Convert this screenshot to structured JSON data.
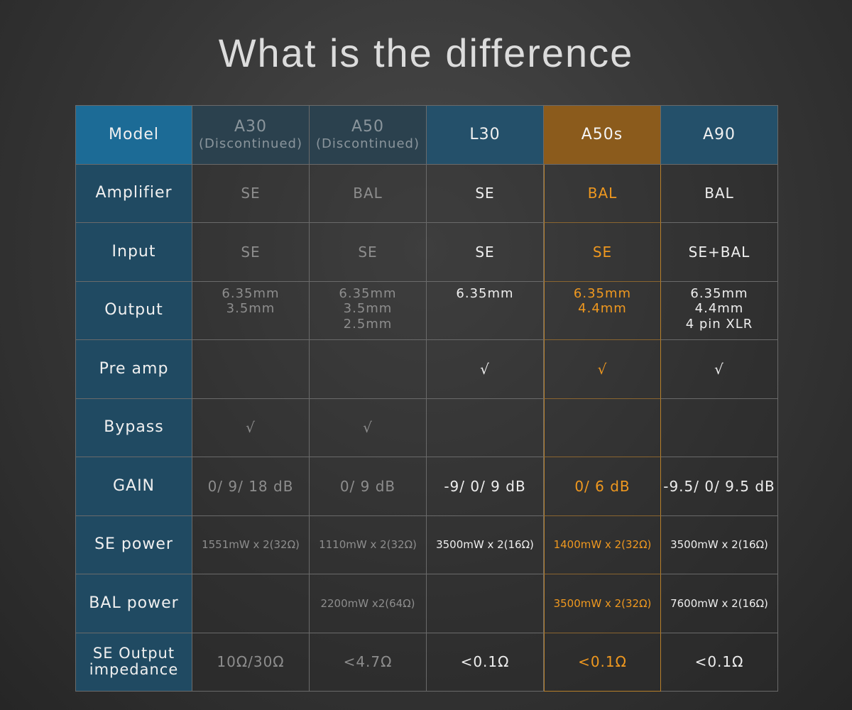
{
  "title": "What is the difference",
  "colors": {
    "label_bg": "#204a62",
    "model_label_bg": "#1c6b96",
    "highlight": "#ef981f",
    "highlight_header_bg": "#8b5b1c",
    "discontinued_text": "#8d8d8d"
  },
  "header_label": "Model",
  "models": [
    {
      "name": "A30",
      "note": "(Discontinued)",
      "status": "discontinued"
    },
    {
      "name": "A50",
      "note": "(Discontinued)",
      "status": "discontinued"
    },
    {
      "name": "L30",
      "note": "",
      "status": "current"
    },
    {
      "name": "A50s",
      "note": "",
      "status": "highlighted"
    },
    {
      "name": "A90",
      "note": "",
      "status": "current"
    }
  ],
  "rows": [
    {
      "label": [
        "Amplifier"
      ],
      "values": [
        [
          "SE"
        ],
        [
          "BAL"
        ],
        [
          "SE"
        ],
        [
          "BAL"
        ],
        [
          "BAL"
        ]
      ]
    },
    {
      "label": [
        "Input"
      ],
      "values": [
        [
          "SE"
        ],
        [
          "SE"
        ],
        [
          "SE"
        ],
        [
          "SE"
        ],
        [
          "SE+BAL"
        ]
      ]
    },
    {
      "label": [
        "Output"
      ],
      "values": [
        [
          "6.35mm",
          "3.5mm"
        ],
        [
          "6.35mm",
          "3.5mm",
          "2.5mm"
        ],
        [
          "6.35mm"
        ],
        [
          "6.35mm",
          "4.4mm"
        ],
        [
          "6.35mm",
          "4.4mm",
          "4 pin XLR"
        ]
      ]
    },
    {
      "label": [
        "Pre amp"
      ],
      "values": [
        [
          ""
        ],
        [
          ""
        ],
        [
          "√"
        ],
        [
          "√"
        ],
        [
          "√"
        ]
      ]
    },
    {
      "label": [
        "Bypass"
      ],
      "values": [
        [
          "√"
        ],
        [
          "√"
        ],
        [
          ""
        ],
        [
          ""
        ],
        [
          ""
        ]
      ]
    },
    {
      "label": [
        "GAIN"
      ],
      "values": [
        [
          "0/ 9/ 18 dB"
        ],
        [
          "0/ 9 dB"
        ],
        [
          "-9/ 0/ 9 dB"
        ],
        [
          "0/ 6 dB"
        ],
        [
          "-9.5/ 0/ 9.5 dB"
        ]
      ]
    },
    {
      "label": [
        "SE power"
      ],
      "values": [
        [
          "1551mW x 2(32Ω)"
        ],
        [
          "1110mW x 2(32Ω)"
        ],
        [
          "3500mW x 2(16Ω)"
        ],
        [
          "1400mW x 2(32Ω)"
        ],
        [
          "3500mW x 2(16Ω)"
        ]
      ]
    },
    {
      "label": [
        "BAL power"
      ],
      "values": [
        [
          ""
        ],
        [
          "2200mW x2(64Ω)"
        ],
        [
          ""
        ],
        [
          "3500mW x 2(32Ω)"
        ],
        [
          "7600mW x 2(16Ω)"
        ]
      ]
    },
    {
      "label": [
        "SE Output",
        "impedance"
      ],
      "values": [
        [
          "10Ω/30Ω"
        ],
        [
          "<4.7Ω"
        ],
        [
          "<0.1Ω"
        ],
        [
          "<0.1Ω"
        ],
        [
          "<0.1Ω"
        ]
      ]
    }
  ]
}
